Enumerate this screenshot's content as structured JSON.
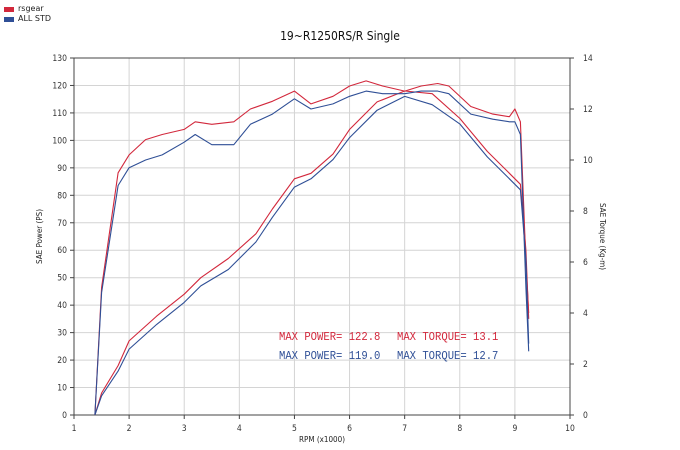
{
  "legend": [
    {
      "label": "rsgear",
      "color": "#d2283c"
    },
    {
      "label": "ALL STD",
      "color": "#2f4f96"
    }
  ],
  "annotations": {
    "rsgear_power": "MAX POWER= 122.8",
    "rsgear_torque": "MAX TORQUE= 13.1",
    "std_power": "MAX POWER= 119.0",
    "std_torque": "MAX TORQUE= 12.7"
  },
  "chart_data": {
    "type": "line",
    "title": "19~R1250RS/R Single",
    "xlabel": "RPM (x1000)",
    "ylabel": "SAE Power (PS)",
    "y2label": "SAE Torque (Kg-m)",
    "xlim": [
      1,
      10
    ],
    "ylim": [
      0,
      130
    ],
    "y2lim": [
      0,
      14
    ],
    "xticks": [
      1,
      2,
      3,
      4,
      5,
      6,
      7,
      8,
      9,
      10
    ],
    "yticks": [
      0,
      10,
      20,
      30,
      40,
      50,
      60,
      70,
      80,
      90,
      100,
      110,
      120,
      130
    ],
    "y2ticks": [
      0,
      2,
      4,
      6,
      8,
      10,
      12,
      14
    ],
    "grid": true,
    "series": [
      {
        "name": "rsgear",
        "color": "#d2283c",
        "power": [
          [
            1.38,
            0
          ],
          [
            1.5,
            8
          ],
          [
            1.8,
            18
          ],
          [
            2.0,
            27
          ],
          [
            2.5,
            36
          ],
          [
            3.0,
            44
          ],
          [
            3.3,
            50
          ],
          [
            3.8,
            57
          ],
          [
            4.3,
            66
          ],
          [
            4.6,
            75
          ],
          [
            5.0,
            86
          ],
          [
            5.3,
            88
          ],
          [
            5.7,
            95
          ],
          [
            6.0,
            104
          ],
          [
            6.5,
            114
          ],
          [
            7.0,
            118
          ],
          [
            7.5,
            117
          ],
          [
            8.0,
            108
          ],
          [
            8.5,
            96
          ],
          [
            8.9,
            88
          ],
          [
            9.0,
            86
          ],
          [
            9.1,
            84
          ],
          [
            9.2,
            60
          ],
          [
            9.25,
            35
          ]
        ],
        "torque": [
          [
            1.38,
            0
          ],
          [
            1.5,
            5.0
          ],
          [
            1.8,
            9.5
          ],
          [
            2.0,
            10.2
          ],
          [
            2.3,
            10.8
          ],
          [
            2.6,
            11.0
          ],
          [
            3.0,
            11.2
          ],
          [
            3.2,
            11.5
          ],
          [
            3.5,
            11.4
          ],
          [
            3.9,
            11.5
          ],
          [
            4.2,
            12.0
          ],
          [
            4.6,
            12.3
          ],
          [
            5.0,
            12.7
          ],
          [
            5.3,
            12.2
          ],
          [
            5.7,
            12.5
          ],
          [
            6.0,
            12.9
          ],
          [
            6.3,
            13.1
          ],
          [
            6.6,
            12.9
          ],
          [
            7.0,
            12.7
          ],
          [
            7.3,
            12.9
          ],
          [
            7.6,
            13.0
          ],
          [
            7.8,
            12.9
          ],
          [
            8.2,
            12.1
          ],
          [
            8.6,
            11.8
          ],
          [
            8.9,
            11.7
          ],
          [
            9.0,
            12.0
          ],
          [
            9.1,
            11.5
          ],
          [
            9.2,
            6.0
          ],
          [
            9.25,
            4.0
          ]
        ]
      },
      {
        "name": "ALL STD",
        "color": "#2f4f96",
        "power": [
          [
            1.38,
            0
          ],
          [
            1.5,
            7
          ],
          [
            1.8,
            16
          ],
          [
            2.0,
            24
          ],
          [
            2.5,
            33
          ],
          [
            3.0,
            41
          ],
          [
            3.3,
            47
          ],
          [
            3.8,
            53
          ],
          [
            4.3,
            63
          ],
          [
            4.6,
            72
          ],
          [
            5.0,
            83
          ],
          [
            5.3,
            86
          ],
          [
            5.7,
            93
          ],
          [
            6.0,
            101
          ],
          [
            6.5,
            111
          ],
          [
            7.0,
            116
          ],
          [
            7.5,
            113
          ],
          [
            8.0,
            106
          ],
          [
            8.5,
            94
          ],
          [
            8.9,
            86
          ],
          [
            9.0,
            84
          ],
          [
            9.1,
            82
          ],
          [
            9.2,
            57
          ],
          [
            9.25,
            26
          ]
        ],
        "torque": [
          [
            1.38,
            0
          ],
          [
            1.5,
            4.8
          ],
          [
            1.8,
            9.0
          ],
          [
            2.0,
            9.7
          ],
          [
            2.3,
            10.0
          ],
          [
            2.6,
            10.2
          ],
          [
            3.0,
            10.7
          ],
          [
            3.2,
            11.0
          ],
          [
            3.5,
            10.6
          ],
          [
            3.9,
            10.6
          ],
          [
            4.2,
            11.4
          ],
          [
            4.6,
            11.8
          ],
          [
            5.0,
            12.4
          ],
          [
            5.3,
            12.0
          ],
          [
            5.7,
            12.2
          ],
          [
            6.0,
            12.5
          ],
          [
            6.3,
            12.7
          ],
          [
            6.6,
            12.6
          ],
          [
            7.0,
            12.6
          ],
          [
            7.3,
            12.7
          ],
          [
            7.6,
            12.7
          ],
          [
            7.8,
            12.6
          ],
          [
            8.2,
            11.8
          ],
          [
            8.6,
            11.6
          ],
          [
            8.9,
            11.5
          ],
          [
            9.0,
            11.5
          ],
          [
            9.1,
            11.0
          ],
          [
            9.2,
            5.0
          ],
          [
            9.25,
            2.5
          ]
        ]
      }
    ]
  }
}
